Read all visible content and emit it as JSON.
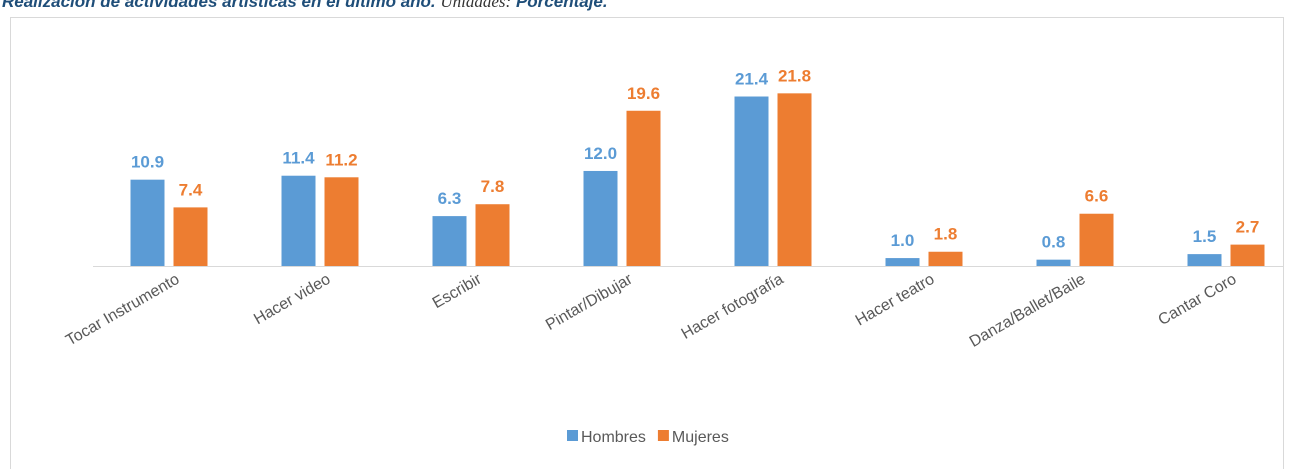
{
  "chart_data": {
    "type": "bar",
    "title": "Realización de actividades artísticas en el último año.",
    "units_label": "Unidades:",
    "units": "Porcentaje.",
    "categories": [
      "Tocar Instrumento",
      "Hacer video",
      "Escribir",
      "Pintar/Dibujar",
      "Hacer fotografía",
      "Hacer teatro",
      "Danza/Ballet/Baile",
      "Cantar Coro"
    ],
    "series": [
      {
        "name": "Hombres",
        "color": "#5b9bd5",
        "values": [
          10.9,
          11.4,
          6.3,
          12.0,
          21.4,
          1.0,
          0.8,
          1.5
        ],
        "value_labels": [
          "10.9",
          "11.4",
          "6.3",
          "12.0",
          "21.4",
          "1.0",
          "0.8",
          "1.5"
        ]
      },
      {
        "name": "Mujeres",
        "color": "#ed7d31",
        "values": [
          7.4,
          11.2,
          7.8,
          19.6,
          21.8,
          1.8,
          6.6,
          2.7
        ],
        "value_labels": [
          "7.4",
          "11.2",
          "7.8",
          "19.6",
          "21.8",
          "1.8",
          "6.6",
          "2.7"
        ]
      }
    ],
    "ylim": [
      0,
      25
    ],
    "legend": "bottom"
  }
}
